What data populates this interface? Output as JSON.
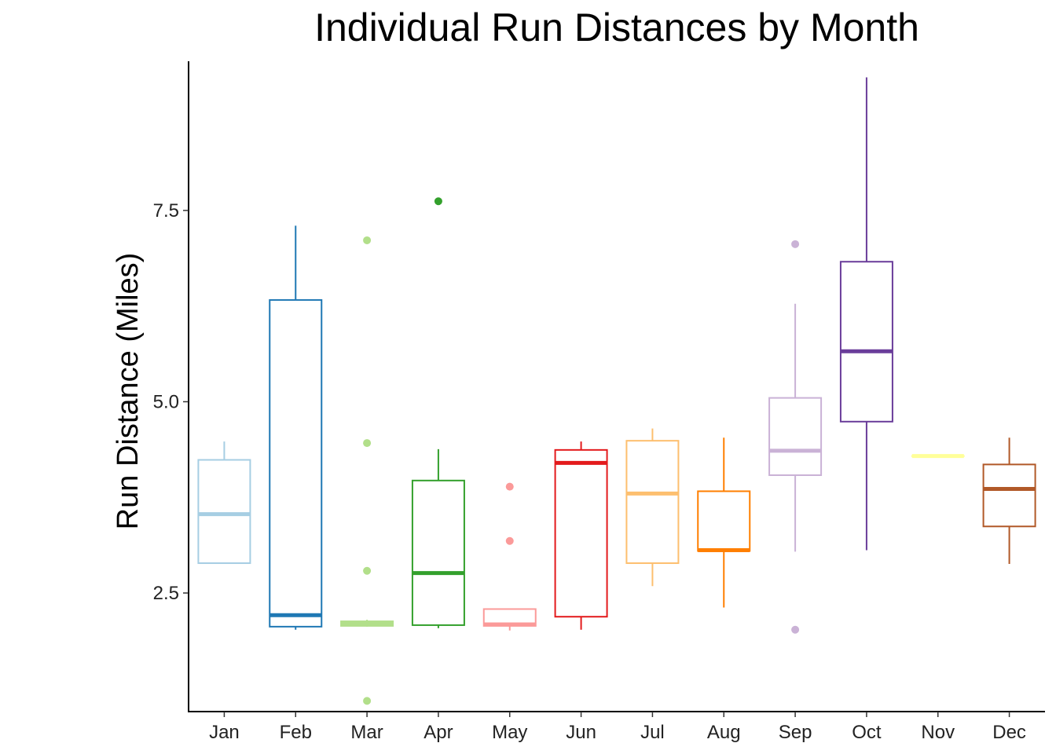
{
  "chart_data": {
    "type": "box",
    "title": "Individual Run Distances by Month",
    "xlabel": "",
    "ylabel": "Run Distance (Miles)",
    "ylim": [
      0.95,
      9.45
    ],
    "yticks": [
      "2.5",
      "5.0",
      "7.5"
    ],
    "ytick_values": [
      2.5,
      5.0,
      7.5
    ],
    "grid": false,
    "legend": "none",
    "categories": [
      "Jan",
      "Feb",
      "Mar",
      "Apr",
      "May",
      "Jun",
      "Jul",
      "Aug",
      "Sep",
      "Oct",
      "Nov",
      "Dec"
    ],
    "series": [
      {
        "category": "Jan",
        "color": "#a6cee3",
        "whisker_low": 2.89,
        "q1": 2.89,
        "median": 3.53,
        "q3": 4.24,
        "whisker_high": 4.48,
        "outliers": []
      },
      {
        "category": "Feb",
        "color": "#1f78b4",
        "whisker_low": 2.02,
        "q1": 2.06,
        "median": 2.21,
        "q3": 6.33,
        "whisker_high": 7.3,
        "outliers": []
      },
      {
        "category": "Mar",
        "color": "#b2df8a",
        "whisker_low": 2.06,
        "q1": 2.07,
        "median": 2.1,
        "q3": 2.13,
        "whisker_high": 2.15,
        "outliers": [
          1.09,
          2.79,
          4.46,
          7.11
        ]
      },
      {
        "category": "Apr",
        "color": "#33a02c",
        "whisker_low": 2.04,
        "q1": 2.08,
        "median": 2.76,
        "q3": 3.97,
        "whisker_high": 4.38,
        "outliers": [
          7.62
        ]
      },
      {
        "category": "May",
        "color": "#fb9a99",
        "whisker_low": 2.01,
        "q1": 2.07,
        "median": 2.09,
        "q3": 2.29,
        "whisker_high": 2.29,
        "outliers": [
          3.18,
          3.89
        ]
      },
      {
        "category": "Jun",
        "color": "#e31a1c",
        "whisker_low": 2.02,
        "q1": 2.19,
        "median": 4.2,
        "q3": 4.37,
        "whisker_high": 4.48,
        "outliers": []
      },
      {
        "category": "Jul",
        "color": "#fdbf6f",
        "whisker_low": 2.59,
        "q1": 2.89,
        "median": 3.8,
        "q3": 4.49,
        "whisker_high": 4.65,
        "outliers": []
      },
      {
        "category": "Aug",
        "color": "#ff7f00",
        "whisker_low": 2.31,
        "q1": 3.05,
        "median": 3.06,
        "q3": 3.83,
        "whisker_high": 4.53,
        "outliers": []
      },
      {
        "category": "Sep",
        "color": "#cab2d6",
        "whisker_low": 3.04,
        "q1": 4.04,
        "median": 4.36,
        "q3": 5.05,
        "whisker_high": 6.28,
        "outliers": [
          2.02,
          7.06
        ]
      },
      {
        "category": "Oct",
        "color": "#6a3d9a",
        "whisker_low": 3.06,
        "q1": 4.74,
        "median": 5.66,
        "q3": 6.83,
        "whisker_high": 9.24,
        "outliers": []
      },
      {
        "category": "Nov",
        "color": "#ffff99",
        "whisker_low": 4.29,
        "q1": 4.29,
        "median": 4.29,
        "q3": 4.29,
        "whisker_high": 4.29,
        "outliers": []
      },
      {
        "category": "Dec",
        "color": "#b15928",
        "whisker_low": 2.88,
        "q1": 3.37,
        "median": 3.86,
        "q3": 4.18,
        "whisker_high": 4.53,
        "outliers": []
      }
    ]
  }
}
